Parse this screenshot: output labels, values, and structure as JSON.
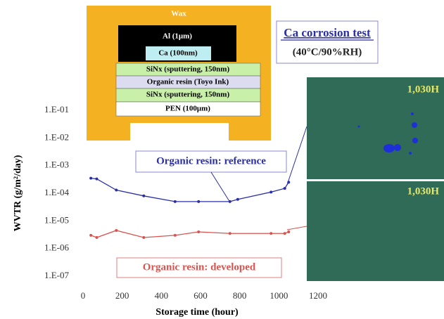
{
  "chart_data": {
    "type": "line",
    "log_y": true,
    "x_label": "Storage time (hour)",
    "y_label": "WVTR (g/m²/day)",
    "xlim": [
      0,
      1200
    ],
    "xticks": [
      0,
      200,
      400,
      600,
      800,
      1000,
      1200
    ],
    "ylim": [
      1e-07,
      0.1
    ],
    "yticks": [
      {
        "value": 0.1,
        "label": "1.E-01"
      },
      {
        "value": 0.01,
        "label": "1.E-02"
      },
      {
        "value": 0.001,
        "label": "1.E-03"
      },
      {
        "value": 0.0001,
        "label": "1.E-04"
      },
      {
        "value": 1e-05,
        "label": "1.E-05"
      },
      {
        "value": 1e-06,
        "label": "1.E-06"
      },
      {
        "value": 1e-07,
        "label": "1.E-07"
      }
    ],
    "series": [
      {
        "name": "Organic resin: reference",
        "color": "#2a2fa8",
        "x": [
          40,
          70,
          170,
          310,
          470,
          590,
          750,
          790,
          960,
          1030,
          1050
        ],
        "values": [
          0.00035,
          0.00033,
          0.00013,
          8e-05,
          5e-05,
          5e-05,
          5e-05,
          6e-05,
          0.00011,
          0.00015,
          0.00025
        ]
      },
      {
        "name": "Organic resin: developed",
        "color": "#d9534f",
        "x": [
          40,
          70,
          170,
          310,
          470,
          590,
          750,
          960,
          1030,
          1050
        ],
        "values": [
          3e-06,
          2.5e-06,
          4.5e-06,
          2.5e-06,
          3e-06,
          4e-06,
          3.5e-06,
          3.5e-06,
          3.5e-06,
          4e-06
        ]
      }
    ]
  },
  "structure": {
    "wax": "Wax",
    "layers": [
      "Al (1μm)",
      "Ca (100nm)",
      "SiNx (sputtering, 150nm)",
      "Organic resin (Toyo Ink)",
      "SiNx (sputtering, 150nm)",
      "PEN (100μm)"
    ]
  },
  "test": {
    "title": "Ca corrosion test",
    "condition": "(40°C/90%RH)"
  },
  "photos": [
    "1,030H",
    "1,030H"
  ]
}
